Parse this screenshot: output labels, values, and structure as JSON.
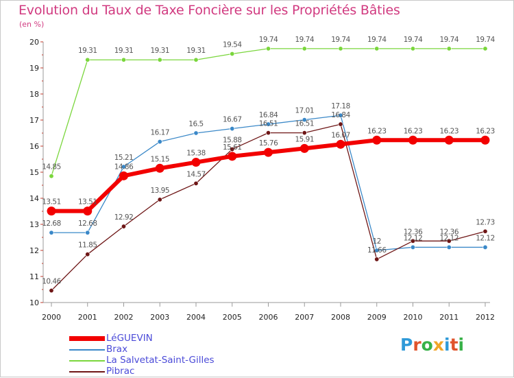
{
  "title": "Evolution du Taux de Taxe Foncière sur les Propriétés Bâties",
  "subtitle": "(en %)",
  "logo_letters": [
    "P",
    "r",
    "o",
    "x",
    "i",
    "t",
    "i"
  ],
  "logo_colors": [
    "#2f9ad8",
    "#e0542c",
    "#38b148",
    "#f0a528",
    "#2f9ad8",
    "#e0542c",
    "#38b148"
  ],
  "chart_data": {
    "type": "line",
    "title": "Evolution du Taux de Taxe Foncière sur les Propriétés Bâties",
    "ylabel": "(en %)",
    "xlabel": "",
    "ylim": [
      10,
      20
    ],
    "grid": false,
    "legend_position": "bottom-left",
    "x": [
      "2000",
      "2001",
      "2002",
      "2003",
      "2004",
      "2005",
      "2006",
      "2007",
      "2008",
      "2009",
      "2010",
      "2011",
      "2012"
    ],
    "y_ticks": [
      "10",
      "11",
      "12",
      "13",
      "14",
      "15",
      "16",
      "17",
      "18",
      "19",
      "20"
    ],
    "series": [
      {
        "name": "LéGUEVIN",
        "color": "#f20000",
        "values": [
          13.51,
          13.51,
          14.86,
          15.15,
          15.38,
          15.61,
          15.76,
          15.91,
          16.07,
          16.23,
          16.23,
          16.23,
          16.23
        ],
        "labels": [
          "13.51",
          "13.51",
          "14.86",
          "15.15",
          "15.38",
          "15.61",
          "15.76",
          "15.91",
          "16.07",
          "16.23",
          "16.23",
          "16.23",
          "16.23"
        ]
      },
      {
        "name": "Brax",
        "color": "#3a88c8",
        "values": [
          12.68,
          12.68,
          15.21,
          16.17,
          16.5,
          16.67,
          16.84,
          17.01,
          17.18,
          12.0,
          12.12,
          12.12,
          12.12
        ],
        "labels": [
          "12.68",
          "12.68",
          "15.21",
          "16.17",
          "16.5",
          "16.67",
          "16.84",
          "17.01",
          "17.18",
          "12",
          "12.12",
          "12.12",
          "12.12"
        ]
      },
      {
        "name": "La Salvetat-Saint-Gilles",
        "color": "#7ad63c",
        "values": [
          14.85,
          19.31,
          19.31,
          19.31,
          19.31,
          19.54,
          19.74,
          19.74,
          19.74,
          19.74,
          19.74,
          19.74,
          19.74
        ],
        "labels": [
          "14.85",
          "19.31",
          "19.31",
          "19.31",
          "19.31",
          "19.54",
          "19.74",
          "19.74",
          "19.74",
          "19.74",
          "19.74",
          "19.74",
          "19.74"
        ]
      },
      {
        "name": "Pibrac",
        "color": "#6e1616",
        "values": [
          10.46,
          11.85,
          12.92,
          13.95,
          14.57,
          15.88,
          16.51,
          16.51,
          16.84,
          11.66,
          12.36,
          12.36,
          12.73
        ],
        "labels": [
          "10.46",
          "11.85",
          "12.92",
          "13.95",
          "14.57",
          "15.88",
          "16.51",
          "16.51",
          "16.84",
          "11.66",
          "12.36",
          "12.36",
          "12.73"
        ]
      }
    ]
  }
}
